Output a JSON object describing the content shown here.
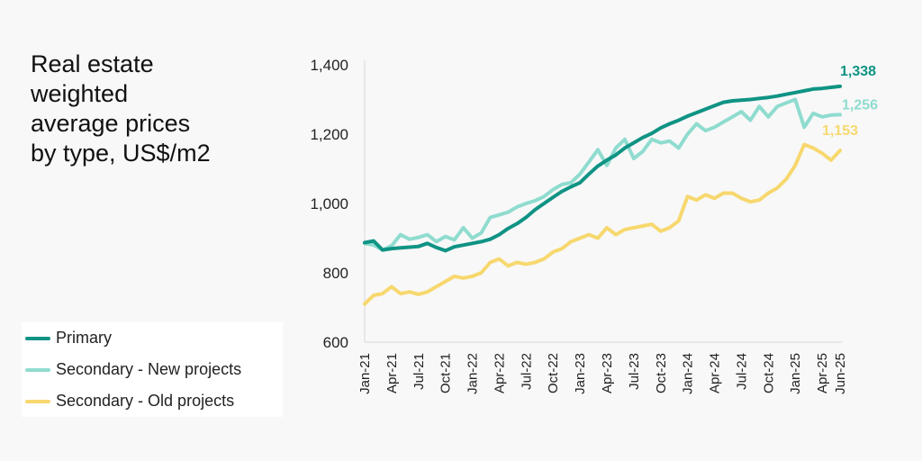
{
  "title": "Real estate\nweighted\naverage prices\nby type, US$/m2",
  "legend": [
    {
      "label": "Primary",
      "color": "#0f9384"
    },
    {
      "label": "Secondary - New projects",
      "color": "#8fdccf"
    },
    {
      "label": "Secondary - Old projects",
      "color": "#f7d86e"
    }
  ],
  "chart_data": {
    "type": "line",
    "title": "Real estate weighted average prices by type, US$/m2",
    "xlabel": "",
    "ylabel": "",
    "ylim": [
      600,
      1400
    ],
    "yticks": [
      "1,400",
      "1,200",
      "1,000",
      "800",
      "600"
    ],
    "yticks_values": [
      1400,
      1200,
      1000,
      800,
      600
    ],
    "x_tick_labels": [
      "Jan-21",
      "Apr-21",
      "Jul-21",
      "Oct-21",
      "Jan-22",
      "Apr-22",
      "Jul-22",
      "Oct-22",
      "Jan-23",
      "Apr-23",
      "Jul-23",
      "Oct-23",
      "Jan-24",
      "Apr-24",
      "Jul-24",
      "Oct-24",
      "Jan-25",
      "Apr-25",
      "Jun-25"
    ],
    "x_tick_index": [
      0,
      3,
      6,
      9,
      12,
      15,
      18,
      21,
      24,
      27,
      30,
      33,
      36,
      39,
      42,
      45,
      48,
      51,
      53
    ],
    "x": [
      "Jan-21",
      "Feb-21",
      "Mar-21",
      "Apr-21",
      "May-21",
      "Jun-21",
      "Jul-21",
      "Aug-21",
      "Sep-21",
      "Oct-21",
      "Nov-21",
      "Dec-21",
      "Jan-22",
      "Feb-22",
      "Mar-22",
      "Apr-22",
      "May-22",
      "Jun-22",
      "Jul-22",
      "Aug-22",
      "Sep-22",
      "Oct-22",
      "Nov-22",
      "Dec-22",
      "Jan-23",
      "Feb-23",
      "Mar-23",
      "Apr-23",
      "May-23",
      "Jun-23",
      "Jul-23",
      "Aug-23",
      "Sep-23",
      "Oct-23",
      "Nov-23",
      "Dec-23",
      "Jan-24",
      "Feb-24",
      "Mar-24",
      "Apr-24",
      "May-24",
      "Jun-24",
      "Jul-24",
      "Aug-24",
      "Sep-24",
      "Oct-24",
      "Nov-24",
      "Dec-24",
      "Jan-25",
      "Feb-25",
      "Mar-25",
      "Apr-25",
      "May-25",
      "Jun-25"
    ],
    "series": [
      {
        "name": "Primary",
        "color": "#0f9384",
        "end_label": "1,338",
        "values": [
          887,
          892,
          866,
          870,
          872,
          874,
          876,
          885,
          873,
          864,
          875,
          880,
          885,
          890,
          897,
          910,
          928,
          942,
          960,
          982,
          1000,
          1018,
          1035,
          1048,
          1060,
          1085,
          1108,
          1125,
          1140,
          1160,
          1175,
          1190,
          1202,
          1218,
          1230,
          1240,
          1252,
          1262,
          1272,
          1282,
          1292,
          1296,
          1298,
          1300,
          1303,
          1306,
          1310,
          1315,
          1320,
          1325,
          1330,
          1332,
          1335,
          1338
        ]
      },
      {
        "name": "Secondary - New projects",
        "color": "#8fdccf",
        "end_label": "1,256",
        "values": [
          885,
          880,
          866,
          878,
          910,
          897,
          902,
          910,
          890,
          905,
          895,
          930,
          900,
          915,
          960,
          967,
          975,
          990,
          1000,
          1008,
          1020,
          1040,
          1055,
          1060,
          1085,
          1120,
          1155,
          1110,
          1160,
          1185,
          1130,
          1150,
          1185,
          1175,
          1180,
          1160,
          1200,
          1230,
          1210,
          1220,
          1235,
          1250,
          1265,
          1240,
          1280,
          1250,
          1280,
          1290,
          1300,
          1220,
          1260,
          1250,
          1255,
          1256
        ]
      },
      {
        "name": "Secondary - Old projects",
        "color": "#f7d86e",
        "end_label": "1,153",
        "values": [
          710,
          735,
          740,
          760,
          740,
          745,
          738,
          745,
          760,
          775,
          790,
          785,
          790,
          800,
          830,
          840,
          820,
          830,
          825,
          830,
          840,
          860,
          870,
          890,
          900,
          910,
          900,
          930,
          910,
          925,
          930,
          935,
          940,
          920,
          930,
          950,
          1020,
          1010,
          1025,
          1015,
          1030,
          1030,
          1015,
          1005,
          1010,
          1030,
          1045,
          1070,
          1110,
          1170,
          1160,
          1145,
          1125,
          1153
        ]
      }
    ]
  }
}
